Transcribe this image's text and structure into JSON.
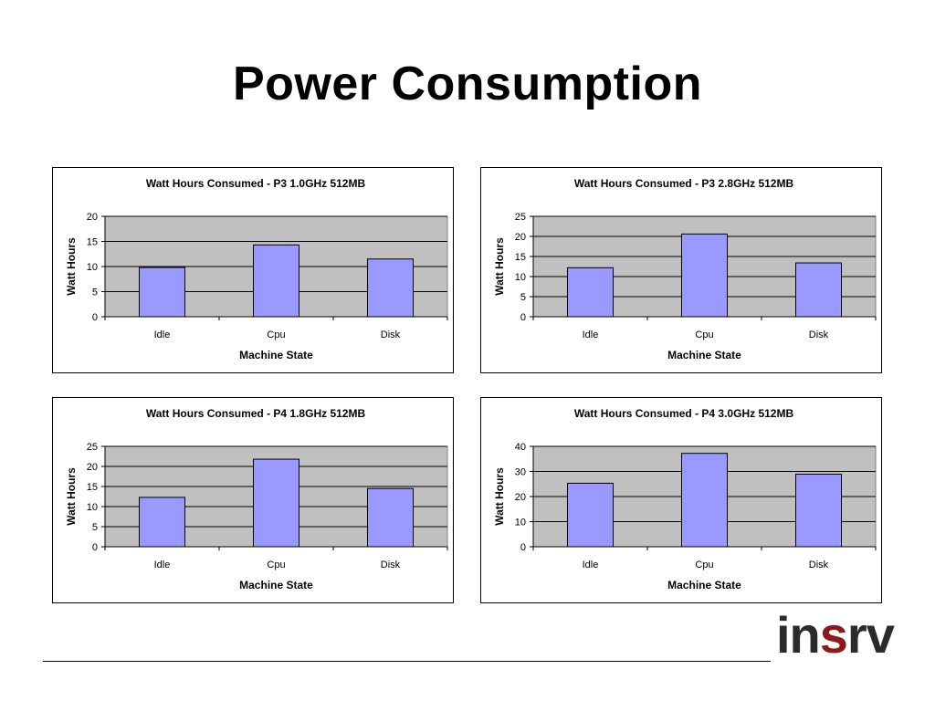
{
  "slide": {
    "title": "Power Consumption",
    "logo": [
      {
        "text": "in",
        "color": "#2b2b2b"
      },
      {
        "text": "s",
        "color": "#8b1a1a"
      },
      {
        "text": "rv",
        "color": "#2b2b2b"
      }
    ]
  },
  "colors": {
    "bar": "#9999ff",
    "plot_bg": "#c0c0c0"
  },
  "chart_data": [
    {
      "type": "bar",
      "title": "Watt Hours Consumed - P3 1.0GHz 512MB",
      "xlabel": "Machine State",
      "ylabel": "Watt Hours",
      "categories": [
        "Idle",
        "Cpu",
        "Disk"
      ],
      "values": [
        9.8,
        14.3,
        11.5
      ],
      "ylim": [
        0,
        20
      ],
      "yticks": [
        0,
        5,
        10,
        15,
        20
      ],
      "grid": true,
      "legend": "none"
    },
    {
      "type": "bar",
      "title": "Watt Hours Consumed - P3 2.8GHz 512MB",
      "xlabel": "Machine State",
      "ylabel": "Watt Hours",
      "categories": [
        "Idle",
        "Cpu",
        "Disk"
      ],
      "values": [
        12.2,
        20.6,
        13.4
      ],
      "ylim": [
        0,
        25
      ],
      "yticks": [
        0,
        5,
        10,
        15,
        20,
        25
      ],
      "grid": true,
      "legend": "none"
    },
    {
      "type": "bar",
      "title": "Watt Hours Consumed - P4 1.8GHz 512MB",
      "xlabel": "Machine State",
      "ylabel": "Watt Hours",
      "categories": [
        "Idle",
        "Cpu",
        "Disk"
      ],
      "values": [
        12.3,
        21.8,
        14.5
      ],
      "ylim": [
        0,
        25
      ],
      "yticks": [
        0,
        5,
        10,
        15,
        20,
        25
      ],
      "grid": true,
      "legend": "none"
    },
    {
      "type": "bar",
      "title": "Watt Hours Consumed - P4 3.0GHz 512MB",
      "xlabel": "Machine State",
      "ylabel": "Watt Hours",
      "categories": [
        "Idle",
        "Cpu",
        "Disk"
      ],
      "values": [
        25.3,
        37.2,
        28.9
      ],
      "ylim": [
        0,
        40
      ],
      "yticks": [
        0,
        10,
        20,
        30,
        40
      ],
      "grid": true,
      "legend": "none"
    }
  ]
}
